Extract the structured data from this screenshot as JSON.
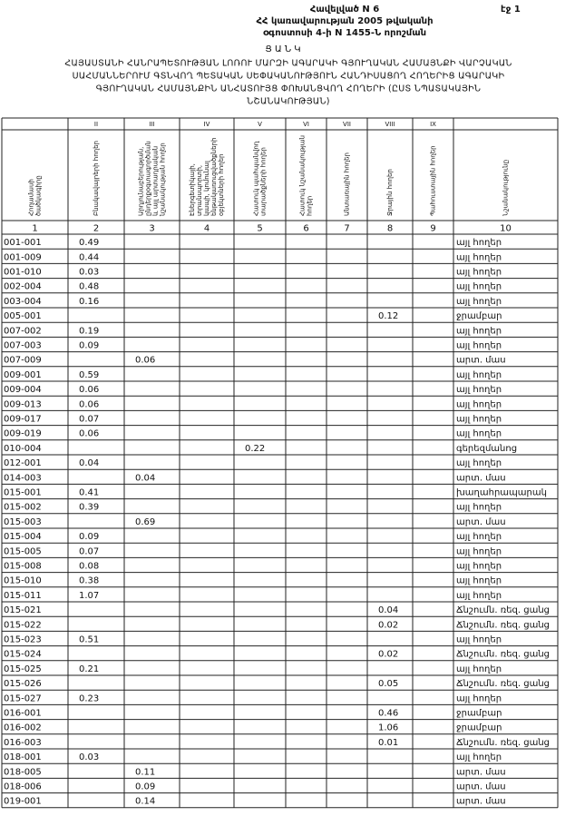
{
  "header": {
    "page": "էջ 1",
    "annex": "Հավելված N 6",
    "line1": "ՀՀ կառավարության 2005 թվականի",
    "line2": "օգոստոսի 4-ի N 1455-Ն որոշման"
  },
  "title": {
    "word": "Ց Ա Ն Կ",
    "lines": [
      "ՀԱՅԱՍՏԱՆԻ ՀԱՆՐԱՊԵՏՈՒԹՅԱՆ ԼՈՌՈՒ ՄԱՐԶԻ ԱԳԱՐԱԿԻ ԳՅՈՒՂԱԿԱՆ ՀԱՄԱՅՆՔԻ ՎԱՐՉԱԿԱՆ",
      "ՍԱՀՄԱՆՆԵՐՈՒՄ ԳՏՆՎՈՂ ՊԵՏԱԿԱՆ ՍԵՓԱԿԱՆՈՒԹՅՈՒՆ ՀԱՆԴԻՍԱՑՈՂ ՀՈՂԵՐԻՑ ԱԳԱՐԱԿԻ",
      "ԳՅՈՒՂԱԿԱՆ ՀԱՄԱՅՆՔԻՆ ԱՆՀԱՏՈՒՅՑ ՓՈԽԱՆՑՎՈՂ ՀՈՂԵՐԻ (ԸՍՏ ՆՊԱՏԱԿԱՅԻՆ",
      "ՆՇԱՆԱԿՈՒԹՅԱՆ)"
    ]
  },
  "table": {
    "roman": [
      null,
      "II",
      "III",
      "IV",
      "V",
      "VI",
      "VII",
      "VIII",
      "IX",
      null
    ],
    "headers": [
      [
        "Հողամասի",
        "ծածկագիրը"
      ],
      [
        "Բնակավայրերի հողեր"
      ],
      [
        "Արդյունաբերության,",
        "ընդերքօգտագործման",
        "և այլ արտադրական",
        "նշանակության հողեր"
      ],
      [
        "Էներգետիկայի,",
        "տրանսպորտի,",
        "կապի, կոմունալ",
        "ենթակառուցվածքների",
        "օբյեկտների հողեր"
      ],
      [
        "Հատուկ պահպանվող",
        "տարածքների հողեր"
      ],
      [
        "Հատուկ նշանակության",
        "հողեր"
      ],
      [
        "Անտառային հողեր"
      ],
      [
        "Ջրային հողեր"
      ],
      [
        "Պահուստային հողեր"
      ],
      [
        "Նշանակությունը"
      ]
    ],
    "numbers": [
      "1",
      "2",
      "3",
      "4",
      "5",
      "6",
      "7",
      "8",
      "9",
      "10"
    ],
    "rows": [
      [
        "001-001",
        "0.49",
        null,
        null,
        null,
        null,
        null,
        null,
        null,
        "այլ հողեր"
      ],
      [
        "001-009",
        "0.44",
        null,
        null,
        null,
        null,
        null,
        null,
        null,
        "այլ հողեր"
      ],
      [
        "001-010",
        "0.03",
        null,
        null,
        null,
        null,
        null,
        null,
        null,
        "այլ հողեր"
      ],
      [
        "002-004",
        "0.48",
        null,
        null,
        null,
        null,
        null,
        null,
        null,
        "այլ հողեր"
      ],
      [
        "003-004",
        "0.16",
        null,
        null,
        null,
        null,
        null,
        null,
        null,
        "այլ հողեր"
      ],
      [
        "005-001",
        null,
        null,
        null,
        null,
        null,
        null,
        "0.12",
        null,
        "ջրամբար"
      ],
      [
        "007-002",
        "0.19",
        null,
        null,
        null,
        null,
        null,
        null,
        null,
        "այլ հողեր"
      ],
      [
        "007-003",
        "0.09",
        null,
        null,
        null,
        null,
        null,
        null,
        null,
        "այլ հողեր"
      ],
      [
        "007-009",
        null,
        "0.06",
        null,
        null,
        null,
        null,
        null,
        null,
        "արտ. մաս"
      ],
      [
        "009-001",
        "0.59",
        null,
        null,
        null,
        null,
        null,
        null,
        null,
        "այլ հողեր"
      ],
      [
        "009-004",
        "0.06",
        null,
        null,
        null,
        null,
        null,
        null,
        null,
        "այլ հողեր"
      ],
      [
        "009-013",
        "0.06",
        null,
        null,
        null,
        null,
        null,
        null,
        null,
        "այլ հողեր"
      ],
      [
        "009-017",
        "0.07",
        null,
        null,
        null,
        null,
        null,
        null,
        null,
        "այլ հողեր"
      ],
      [
        "009-019",
        "0.06",
        null,
        null,
        null,
        null,
        null,
        null,
        null,
        "այլ հողեր"
      ],
      [
        "010-004",
        null,
        null,
        null,
        "0.22",
        null,
        null,
        null,
        null,
        "գերեզմանոց"
      ],
      [
        "012-001",
        "0.04",
        null,
        null,
        null,
        null,
        null,
        null,
        null,
        "այլ հողեր"
      ],
      [
        "014-003",
        null,
        "0.04",
        null,
        null,
        null,
        null,
        null,
        null,
        "արտ. մաս"
      ],
      [
        "015-001",
        "0.41",
        null,
        null,
        null,
        null,
        null,
        null,
        null,
        "խաղահրապարակ"
      ],
      [
        "015-002",
        "0.39",
        null,
        null,
        null,
        null,
        null,
        null,
        null,
        "այլ հողեր"
      ],
      [
        "015-003",
        null,
        "0.69",
        null,
        null,
        null,
        null,
        null,
        null,
        "արտ. մաս"
      ],
      [
        "015-004",
        "0.09",
        null,
        null,
        null,
        null,
        null,
        null,
        null,
        "այլ հողեր"
      ],
      [
        "015-005",
        "0.07",
        null,
        null,
        null,
        null,
        null,
        null,
        null,
        "այլ հողեր"
      ],
      [
        "015-008",
        "0.08",
        null,
        null,
        null,
        null,
        null,
        null,
        null,
        "այլ հողեր"
      ],
      [
        "015-010",
        "0.38",
        null,
        null,
        null,
        null,
        null,
        null,
        null,
        "այլ հողեր"
      ],
      [
        "015-011",
        "1.07",
        null,
        null,
        null,
        null,
        null,
        null,
        null,
        "այլ հողեր"
      ],
      [
        "015-021",
        null,
        null,
        null,
        null,
        null,
        null,
        "0.04",
        null,
        "Ճնշումն. ռեզ. ցանց"
      ],
      [
        "015-022",
        null,
        null,
        null,
        null,
        null,
        null,
        "0.02",
        null,
        "Ճնշումն. ռեզ. ցանց"
      ],
      [
        "015-023",
        "0.51",
        null,
        null,
        null,
        null,
        null,
        null,
        null,
        "այլ հողեր"
      ],
      [
        "015-024",
        null,
        null,
        null,
        null,
        null,
        null,
        "0.02",
        null,
        "Ճնշումն. ռեզ. ցանց"
      ],
      [
        "015-025",
        "0.21",
        null,
        null,
        null,
        null,
        null,
        null,
        null,
        "այլ հողեր"
      ],
      [
        "015-026",
        null,
        null,
        null,
        null,
        null,
        null,
        "0.05",
        null,
        "Ճնշումն. ռեզ. ցանց"
      ],
      [
        "015-027",
        "0.23",
        null,
        null,
        null,
        null,
        null,
        null,
        null,
        "այլ հողեր"
      ],
      [
        "016-001",
        null,
        null,
        null,
        null,
        null,
        null,
        "0.46",
        null,
        "ջրամբար"
      ],
      [
        "016-002",
        null,
        null,
        null,
        null,
        null,
        null,
        "1.06",
        null,
        "ջրամբար"
      ],
      [
        "016-003",
        null,
        null,
        null,
        null,
        null,
        null,
        "0.01",
        null,
        "Ճնշումն. ռեզ. ցանց"
      ],
      [
        "018-001",
        "0.03",
        null,
        null,
        null,
        null,
        null,
        null,
        null,
        "այլ հողեր"
      ],
      [
        "018-005",
        null,
        "0.11",
        null,
        null,
        null,
        null,
        null,
        null,
        "արտ. մաս"
      ],
      [
        "018-006",
        null,
        "0.09",
        null,
        null,
        null,
        null,
        null,
        null,
        "արտ. մաս"
      ],
      [
        "019-001",
        null,
        "0.14",
        null,
        null,
        null,
        null,
        null,
        null,
        "արտ. մաս"
      ]
    ]
  }
}
